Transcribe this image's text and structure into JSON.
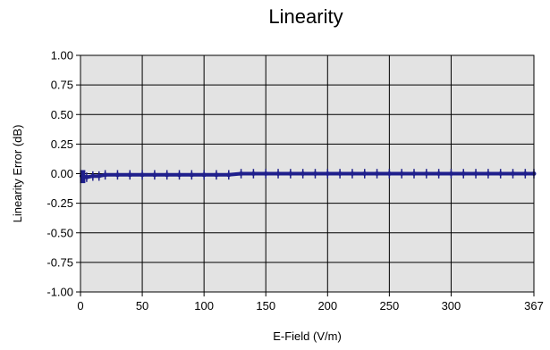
{
  "chart_data": {
    "type": "line",
    "title": "Linearity",
    "xlabel": "E-Field (V/m)",
    "ylabel": "Linearity Error (dB)",
    "xlim": [
      0,
      367
    ],
    "ylim": [
      -1.0,
      1.0
    ],
    "grid": true,
    "x_ticks": [
      0,
      50,
      100,
      150,
      200,
      250,
      300,
      367
    ],
    "x_tick_labels": [
      "0",
      "50",
      "100",
      "150",
      "200",
      "250",
      "300",
      "367"
    ],
    "y_ticks": [
      1.0,
      0.75,
      0.5,
      0.25,
      0.0,
      -0.25,
      -0.5,
      -0.75,
      -1.0
    ],
    "y_tick_labels": [
      "1.00",
      "0.75",
      "0.50",
      "0.25",
      "0.00",
      "-0.25",
      "-0.50",
      "-0.75",
      "-1.00"
    ],
    "plot_background": "#e3e3e3",
    "grid_color": "#000000",
    "series": [
      {
        "color": "#1f1f8c",
        "x": [
          1,
          5,
          10,
          15,
          20,
          30,
          40,
          50,
          60,
          70,
          80,
          90,
          100,
          110,
          120,
          130,
          140,
          150,
          160,
          170,
          180,
          190,
          200,
          210,
          220,
          230,
          240,
          250,
          260,
          270,
          280,
          290,
          300,
          310,
          320,
          330,
          340,
          350,
          360,
          367
        ],
        "y": [
          -0.02,
          -0.03,
          -0.02,
          -0.02,
          -0.01,
          -0.01,
          -0.01,
          -0.01,
          -0.01,
          -0.01,
          -0.01,
          -0.01,
          -0.01,
          -0.01,
          -0.01,
          0.0,
          0.0,
          0.0,
          0.0,
          0.0,
          0.0,
          0.0,
          0.0,
          0.0,
          0.0,
          0.0,
          0.0,
          0.0,
          0.0,
          0.0,
          0.0,
          0.0,
          0.0,
          0.0,
          0.0,
          0.0,
          0.0,
          0.0,
          0.0,
          0.0
        ],
        "error_bar": 0.04
      }
    ]
  }
}
